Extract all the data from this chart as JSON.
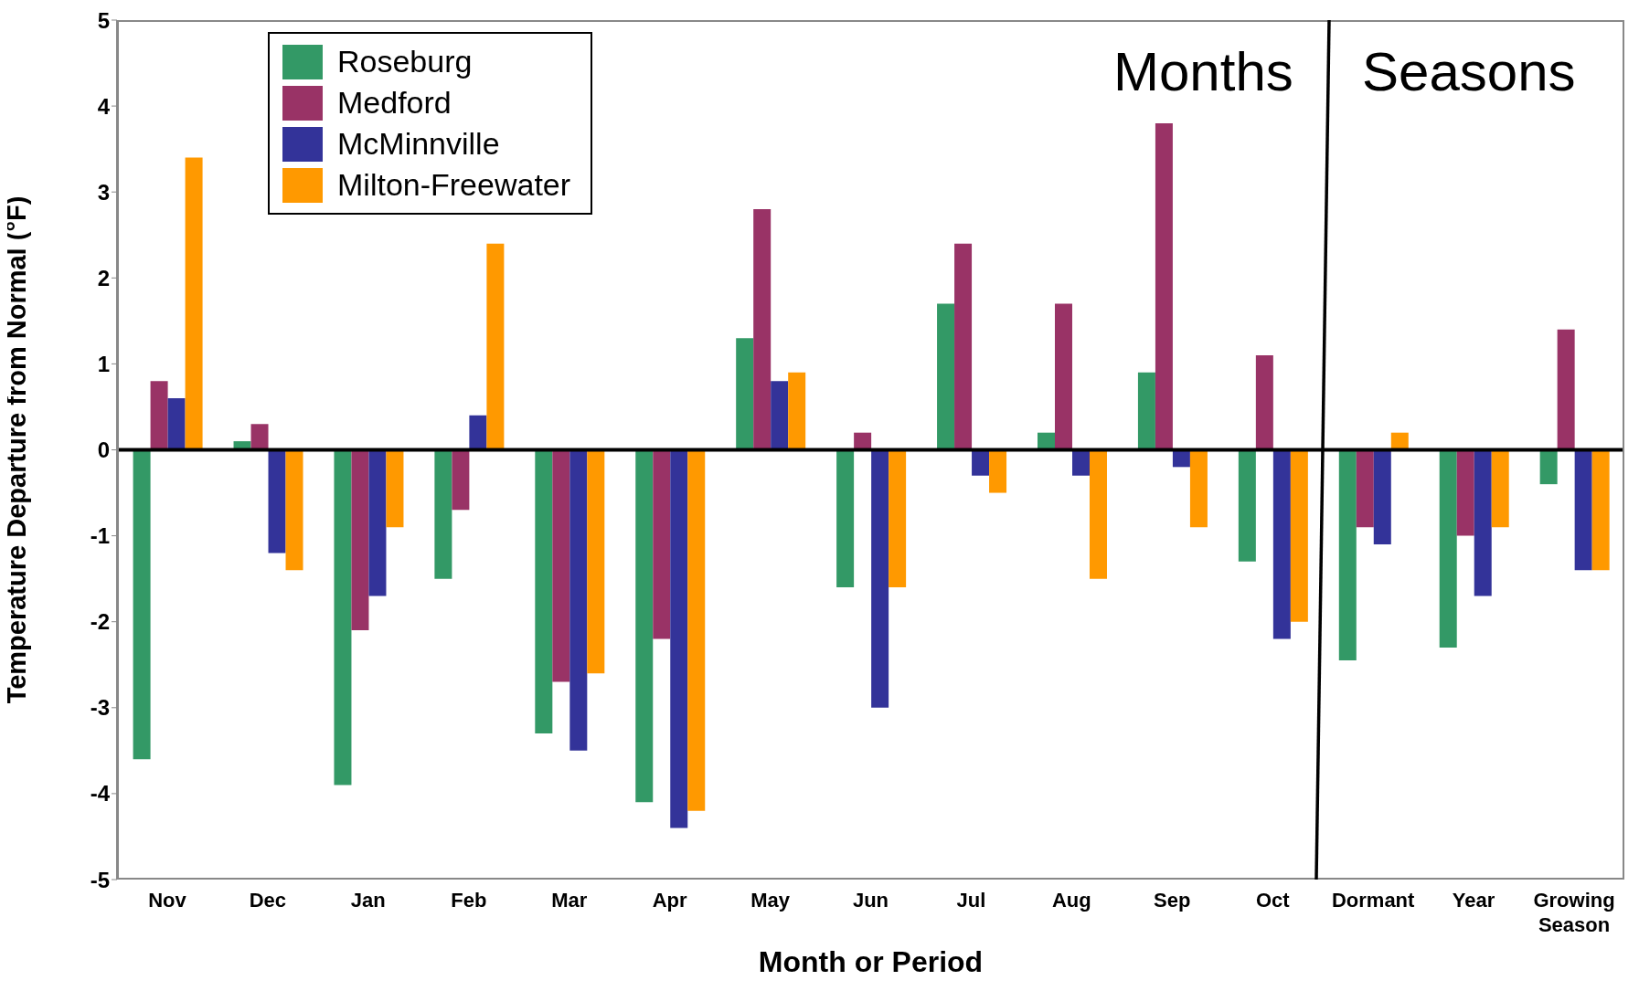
{
  "chart_data": {
    "type": "bar",
    "xlabel": "Month or Period",
    "ylabel": "Temperature Departure from Normal (°F)",
    "categories": [
      "Nov",
      "Dec",
      "Jan",
      "Feb",
      "Mar",
      "Apr",
      "May",
      "Jun",
      "Jul",
      "Aug",
      "Sep",
      "Oct",
      "Dormant",
      "Year",
      "Growing Season"
    ],
    "series": [
      {
        "name": "Roseburg",
        "color": "#339966",
        "values": [
          -3.6,
          0.1,
          -3.9,
          -1.5,
          -3.3,
          -4.1,
          1.3,
          -1.6,
          1.7,
          0.2,
          0.9,
          -1.3,
          -2.45,
          -2.3,
          -0.4
        ]
      },
      {
        "name": "Medford",
        "color": "#993366",
        "values": [
          0.8,
          0.3,
          -2.1,
          -0.7,
          -2.7,
          -2.2,
          2.8,
          0.2,
          2.4,
          1.7,
          3.8,
          1.1,
          -0.9,
          -1.0,
          1.4
        ]
      },
      {
        "name": "McMinnville",
        "color": "#333399",
        "values": [
          0.6,
          -1.2,
          -1.7,
          0.4,
          -3.5,
          -4.4,
          0.8,
          -3.0,
          -0.3,
          -0.3,
          -0.2,
          -2.2,
          -1.1,
          -1.7,
          -1.4
        ]
      },
      {
        "name": "Milton-Freewater",
        "color": "#ff9900",
        "values": [
          3.4,
          -1.4,
          -0.9,
          2.4,
          -2.6,
          -4.2,
          0.9,
          -1.6,
          -0.5,
          -1.5,
          -0.9,
          -2.0,
          0.2,
          -0.9,
          -1.4
        ]
      }
    ],
    "ylim": [
      -5,
      5
    ],
    "yticks": [
      -5,
      -4,
      -3,
      -2,
      -1,
      0,
      1,
      2,
      3,
      4,
      5
    ],
    "ref_lines": [
      {
        "axis": "y",
        "value": 0,
        "color": "#000000"
      }
    ],
    "annotations": [
      "Months",
      "Seasons"
    ],
    "grid": false,
    "legend": "top left"
  }
}
